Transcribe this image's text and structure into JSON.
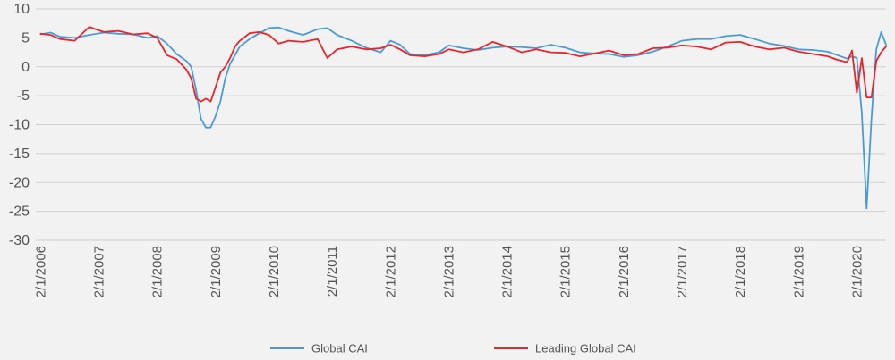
{
  "chart_data": {
    "type": "line",
    "title": "",
    "xlabel": "",
    "ylabel": "",
    "ylim": [
      -30,
      10
    ],
    "xlim": [
      "2006-01",
      "2020-08"
    ],
    "grid": "horizontal",
    "legend_position": "bottom",
    "y_ticks": [
      "10",
      "5",
      "0",
      "-5",
      "-10",
      "-15",
      "-20",
      "-25",
      "-30"
    ],
    "x_ticks": [
      "2/1/2006",
      "2/1/2007",
      "2/1/2008",
      "2/1/2009",
      "2/1/2010",
      "2/1/2011",
      "2/1/2012",
      "2/1/2013",
      "2/1/2014",
      "2/1/2015",
      "2/1/2016",
      "2/1/2017",
      "2/1/2018",
      "2/1/2019",
      "2/1/2020"
    ],
    "series": [
      {
        "name": "Global CAI",
        "color": "#4a9bd4",
        "points": [
          [
            "2006-02",
            5.6
          ],
          [
            "2006-04",
            5.9
          ],
          [
            "2006-06",
            5.2
          ],
          [
            "2006-09",
            5.0
          ],
          [
            "2006-12",
            5.5
          ],
          [
            "2007-03",
            5.9
          ],
          [
            "2007-06",
            5.7
          ],
          [
            "2007-09",
            5.6
          ],
          [
            "2007-12",
            5.0
          ],
          [
            "2008-02",
            5.3
          ],
          [
            "2008-04",
            4.0
          ],
          [
            "2008-06",
            2.2
          ],
          [
            "2008-08",
            1.0
          ],
          [
            "2008-09",
            0.0
          ],
          [
            "2008-10",
            -4.0
          ],
          [
            "2008-11",
            -9.0
          ],
          [
            "2008-12",
            -10.5
          ],
          [
            "2009-01",
            -10.5
          ],
          [
            "2009-02",
            -8.5
          ],
          [
            "2009-03",
            -6.0
          ],
          [
            "2009-04",
            -2.0
          ],
          [
            "2009-05",
            0.5
          ],
          [
            "2009-06",
            2.0
          ],
          [
            "2009-07",
            3.5
          ],
          [
            "2009-09",
            4.8
          ],
          [
            "2009-11",
            5.8
          ],
          [
            "2010-01",
            6.7
          ],
          [
            "2010-03",
            6.8
          ],
          [
            "2010-05",
            6.2
          ],
          [
            "2010-08",
            5.5
          ],
          [
            "2010-11",
            6.5
          ],
          [
            "2011-01",
            6.7
          ],
          [
            "2011-03",
            5.5
          ],
          [
            "2011-06",
            4.5
          ],
          [
            "2011-09",
            3.3
          ],
          [
            "2011-12",
            2.5
          ],
          [
            "2012-02",
            4.5
          ],
          [
            "2012-04",
            3.8
          ],
          [
            "2012-06",
            2.2
          ],
          [
            "2012-09",
            2.0
          ],
          [
            "2012-12",
            2.5
          ],
          [
            "2013-02",
            3.7
          ],
          [
            "2013-05",
            3.2
          ],
          [
            "2013-08",
            2.9
          ],
          [
            "2013-11",
            3.3
          ],
          [
            "2014-02",
            3.5
          ],
          [
            "2014-05",
            3.4
          ],
          [
            "2014-08",
            3.2
          ],
          [
            "2014-11",
            3.8
          ],
          [
            "2015-02",
            3.3
          ],
          [
            "2015-05",
            2.5
          ],
          [
            "2015-08",
            2.3
          ],
          [
            "2015-11",
            2.2
          ],
          [
            "2016-02",
            1.7
          ],
          [
            "2016-05",
            2.0
          ],
          [
            "2016-08",
            2.6
          ],
          [
            "2016-11",
            3.5
          ],
          [
            "2017-02",
            4.5
          ],
          [
            "2017-05",
            4.8
          ],
          [
            "2017-08",
            4.8
          ],
          [
            "2017-11",
            5.3
          ],
          [
            "2018-02",
            5.5
          ],
          [
            "2018-05",
            4.8
          ],
          [
            "2018-08",
            4.0
          ],
          [
            "2018-11",
            3.6
          ],
          [
            "2019-02",
            3.0
          ],
          [
            "2019-05",
            2.9
          ],
          [
            "2019-08",
            2.6
          ],
          [
            "2019-10",
            2.0
          ],
          [
            "2019-12",
            1.4
          ],
          [
            "2020-01",
            1.8
          ],
          [
            "2020-02",
            1.5
          ],
          [
            "2020-03",
            -8.0
          ],
          [
            "2020-04",
            -24.5
          ],
          [
            "2020-05",
            -9.0
          ],
          [
            "2020-06",
            3.0
          ],
          [
            "2020-07",
            6.0
          ],
          [
            "2020-08",
            3.8
          ]
        ]
      },
      {
        "name": "Leading Global CAI",
        "color": "#e8252a",
        "points": [
          [
            "2006-02",
            5.7
          ],
          [
            "2006-04",
            5.5
          ],
          [
            "2006-06",
            4.8
          ],
          [
            "2006-09",
            4.5
          ],
          [
            "2006-12",
            6.9
          ],
          [
            "2007-03",
            6.0
          ],
          [
            "2007-06",
            6.2
          ],
          [
            "2007-09",
            5.6
          ],
          [
            "2007-12",
            5.8
          ],
          [
            "2008-02",
            5.0
          ],
          [
            "2008-04",
            2.0
          ],
          [
            "2008-06",
            1.3
          ],
          [
            "2008-08",
            -0.5
          ],
          [
            "2008-09",
            -2.0
          ],
          [
            "2008-10",
            -5.5
          ],
          [
            "2008-11",
            -6.0
          ],
          [
            "2008-12",
            -5.5
          ],
          [
            "2009-01",
            -6.0
          ],
          [
            "2009-02",
            -3.5
          ],
          [
            "2009-03",
            -1.0
          ],
          [
            "2009-04",
            0.0
          ],
          [
            "2009-05",
            1.5
          ],
          [
            "2009-06",
            3.5
          ],
          [
            "2009-07",
            4.5
          ],
          [
            "2009-09",
            5.8
          ],
          [
            "2009-11",
            6.0
          ],
          [
            "2010-01",
            5.5
          ],
          [
            "2010-03",
            4.0
          ],
          [
            "2010-05",
            4.5
          ],
          [
            "2010-08",
            4.3
          ],
          [
            "2010-11",
            4.8
          ],
          [
            "2011-01",
            1.5
          ],
          [
            "2011-03",
            3.0
          ],
          [
            "2011-06",
            3.5
          ],
          [
            "2011-09",
            3.0
          ],
          [
            "2011-12",
            3.2
          ],
          [
            "2012-02",
            3.8
          ],
          [
            "2012-04",
            3.0
          ],
          [
            "2012-06",
            2.0
          ],
          [
            "2012-09",
            1.8
          ],
          [
            "2012-12",
            2.2
          ],
          [
            "2013-02",
            3.0
          ],
          [
            "2013-05",
            2.5
          ],
          [
            "2013-08",
            3.0
          ],
          [
            "2013-11",
            4.3
          ],
          [
            "2014-02",
            3.5
          ],
          [
            "2014-05",
            2.5
          ],
          [
            "2014-08",
            3.0
          ],
          [
            "2014-11",
            2.5
          ],
          [
            "2015-02",
            2.4
          ],
          [
            "2015-05",
            1.8
          ],
          [
            "2015-08",
            2.3
          ],
          [
            "2015-11",
            2.8
          ],
          [
            "2016-02",
            2.0
          ],
          [
            "2016-05",
            2.2
          ],
          [
            "2016-08",
            3.2
          ],
          [
            "2016-11",
            3.3
          ],
          [
            "2017-02",
            3.7
          ],
          [
            "2017-05",
            3.5
          ],
          [
            "2017-08",
            3.0
          ],
          [
            "2017-11",
            4.2
          ],
          [
            "2018-02",
            4.3
          ],
          [
            "2018-05",
            3.5
          ],
          [
            "2018-08",
            3.0
          ],
          [
            "2018-11",
            3.3
          ],
          [
            "2019-02",
            2.6
          ],
          [
            "2019-05",
            2.2
          ],
          [
            "2019-08",
            1.8
          ],
          [
            "2019-10",
            1.2
          ],
          [
            "2019-12",
            0.8
          ],
          [
            "2020-01",
            2.8
          ],
          [
            "2020-02",
            -4.5
          ],
          [
            "2020-03",
            1.5
          ],
          [
            "2020-04",
            -5.3
          ],
          [
            "2020-05",
            -5.3
          ],
          [
            "2020-06",
            1.0
          ],
          [
            "2020-07",
            2.5
          ],
          [
            "2020-08",
            3.5
          ]
        ]
      }
    ]
  }
}
